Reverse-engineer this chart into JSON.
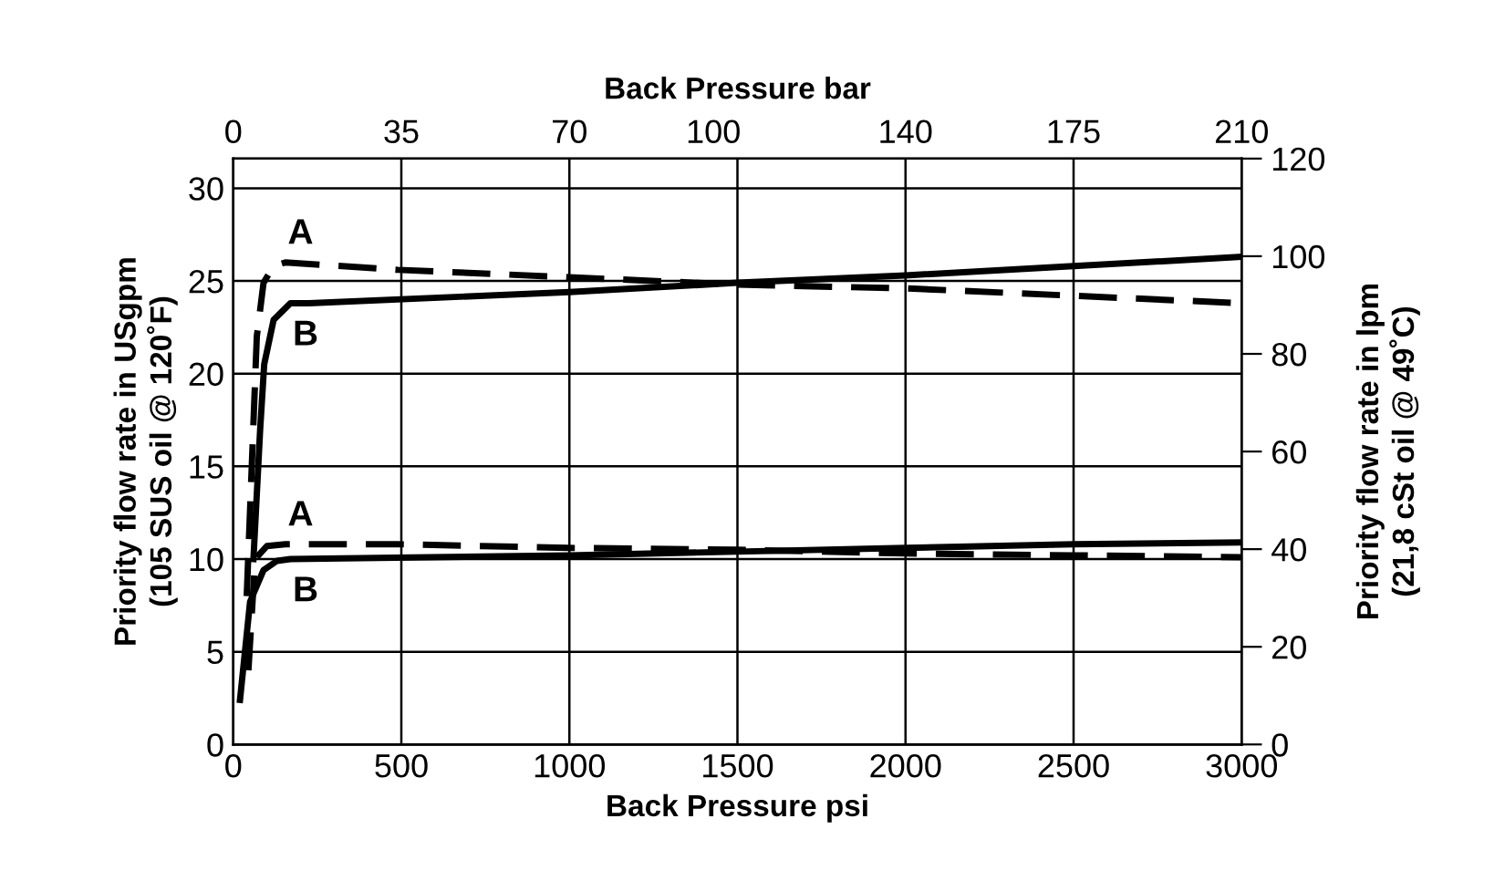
{
  "chart_data": {
    "type": "line",
    "xlabel": "Back Pressure psi",
    "x2label": "Back Pressure bar",
    "ylabel": "Priority flow rate in USgpm\n(105 SUS oil @ 120˚F)",
    "y2label": "Priority flow rate in lpm\n(21,8 cSt oil @ 49˚C)",
    "xlim": [
      0,
      3000
    ],
    "xticks": [
      0,
      500,
      1000,
      1500,
      2000,
      2500,
      3000
    ],
    "x2lim": [
      0,
      210
    ],
    "x2ticks": [
      0,
      35,
      70,
      100,
      140,
      175,
      210
    ],
    "ylim": [
      0,
      31.6
    ],
    "yticks": [
      0,
      5,
      10,
      15,
      20,
      25,
      30
    ],
    "y2lim": [
      0,
      120
    ],
    "y2ticks": [
      0,
      20,
      40,
      60,
      80,
      100,
      120
    ],
    "grid": true,
    "marker": "none",
    "series": [
      {
        "name": "A",
        "color": "#000000",
        "line_style": "dashed",
        "x": [
          40,
          70,
          90,
          120,
          155,
          490,
          1000,
          1500,
          2000,
          2500,
          3000
        ],
        "values": [
          8,
          22,
          24.9,
          25.8,
          26.0,
          25.6,
          25.2,
          24.8,
          24.6,
          24.2,
          23.8
        ]
      },
      {
        "name": "B",
        "color": "#000000",
        "line_style": "solid",
        "x": [
          60,
          80,
          92,
          120,
          170,
          225,
          1000,
          1500,
          2000,
          2500,
          3000
        ],
        "values": [
          10,
          17,
          20.5,
          22.9,
          23.8,
          23.8,
          24.4,
          24.9,
          25.3,
          25.8,
          26.3
        ]
      },
      {
        "name": "A",
        "color": "#000000",
        "line_style": "dashed",
        "x": [
          45,
          65,
          100,
          155,
          490,
          1000,
          1500,
          2000,
          2500,
          3000
        ],
        "values": [
          4,
          10.0,
          10.7,
          10.8,
          10.8,
          10.6,
          10.5,
          10.3,
          10.2,
          10.1
        ]
      },
      {
        "name": "B",
        "color": "#000000",
        "line_style": "solid",
        "x": [
          20,
          50,
          90,
          130,
          170,
          1000,
          1500,
          2000,
          2500,
          3000
        ],
        "values": [
          2.4,
          7.7,
          9.4,
          9.9,
          10.0,
          10.2,
          10.4,
          10.6,
          10.8,
          10.9
        ]
      }
    ]
  }
}
